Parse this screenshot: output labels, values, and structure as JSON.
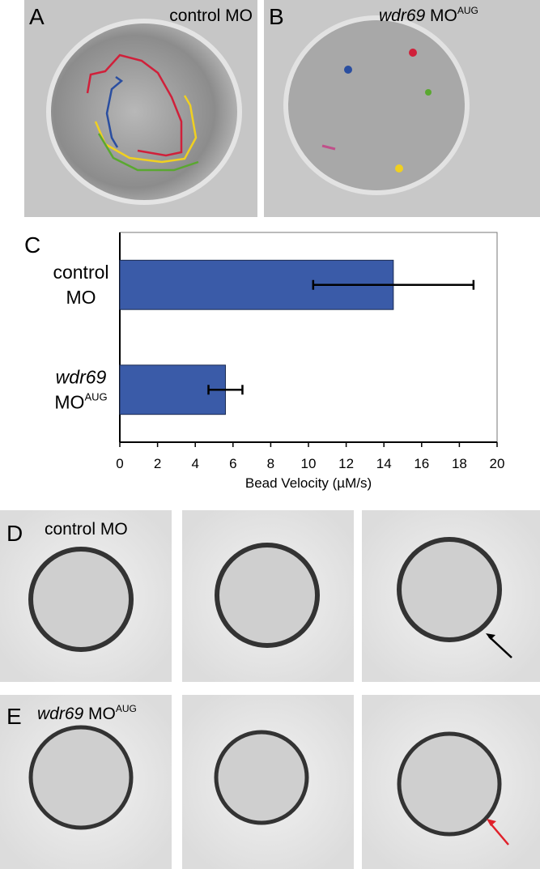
{
  "panels": [
    {
      "letter": "A",
      "caption": "control MO"
    },
    {
      "letter": "B",
      "gene": "wdr69",
      "caption": "MO",
      "sup": "AUG"
    },
    {
      "letter": "C"
    },
    {
      "letter": "D",
      "caption": "control MO"
    },
    {
      "letter": "E",
      "gene": "wdr69",
      "caption": "MO",
      "sup": "AUG"
    }
  ],
  "chart_data": {
    "type": "bar",
    "orientation": "horizontal",
    "categories": [
      {
        "line1": "control",
        "line2": "MO"
      },
      {
        "line1": "wdr69",
        "line2": "MO",
        "sup": "AUG"
      }
    ],
    "values": [
      14.5,
      5.6
    ],
    "errors": [
      4.25,
      0.9
    ],
    "color": "#3a5ba8",
    "xlim": [
      0,
      20
    ],
    "xticks": [
      0,
      2,
      4,
      6,
      8,
      10,
      12,
      14,
      16,
      18,
      20
    ],
    "xlabel": "Bead Velocity (µM/s)"
  }
}
